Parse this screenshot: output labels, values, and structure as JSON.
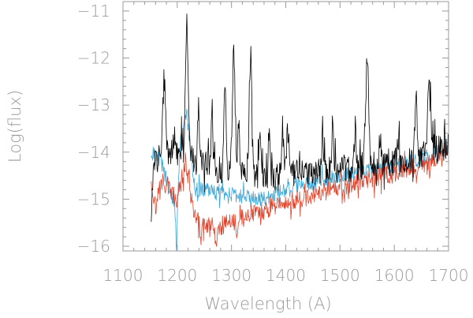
{
  "chart_data": {
    "type": "line",
    "title": "",
    "xlabel": "Wavelength (A)",
    "ylabel": "Log(flux)",
    "xlim": [
      1100,
      1700
    ],
    "ylim": [
      -16.1,
      -10.8
    ],
    "grid": false,
    "legend": "none",
    "x_ticks": [
      1100,
      1200,
      1300,
      1400,
      1500,
      1600,
      1700
    ],
    "y_ticks": [
      -16,
      -15,
      -14,
      -13,
      -12,
      -11
    ],
    "x_tick_labels": [
      "1100",
      "1200",
      "1300",
      "1400",
      "1500",
      "1600",
      "1700"
    ],
    "y_tick_labels": [
      "−16",
      "−15",
      "−14",
      "−13",
      "−12",
      "−11"
    ],
    "series": [
      {
        "color": "#000000",
        "base": [
          [
            1152,
            -14.3
          ],
          [
            1170,
            -14.05
          ],
          [
            1200,
            -14.0
          ],
          [
            1215,
            -13.7
          ],
          [
            1230,
            -14.2
          ],
          [
            1300,
            -14.45
          ],
          [
            1360,
            -14.55
          ],
          [
            1400,
            -14.5
          ],
          [
            1450,
            -14.4
          ],
          [
            1500,
            -14.35
          ],
          [
            1550,
            -14.3
          ],
          [
            1600,
            -14.2
          ],
          [
            1650,
            -14.1
          ],
          [
            1700,
            -13.85
          ]
        ],
        "lines": [
          [
            1152,
            -15.7,
            1.5
          ],
          [
            1176,
            -12.4,
            2.5
          ],
          [
            1196,
            -13.6,
            2
          ],
          [
            1218,
            -11.4,
            2.5
          ],
          [
            1239,
            -13.0,
            1.5
          ],
          [
            1264,
            -13.1,
            1.5
          ],
          [
            1288,
            -12.7,
            2
          ],
          [
            1304,
            -11.9,
            2.5
          ],
          [
            1313,
            -13.2,
            1.5
          ],
          [
            1335,
            -11.9,
            2.5
          ],
          [
            1352,
            -13.4,
            1.5
          ],
          [
            1370,
            -13.5,
            1.5
          ],
          [
            1394,
            -13.5,
            2
          ],
          [
            1403,
            -13.6,
            2
          ],
          [
            1468,
            -13.5,
            1.5
          ],
          [
            1486,
            -13.4,
            1.5
          ],
          [
            1528,
            -13.5,
            1.5
          ],
          [
            1550,
            -12.2,
            3
          ],
          [
            1574,
            -13.6,
            1.5
          ],
          [
            1608,
            -13.4,
            1.5
          ],
          [
            1640,
            -12.9,
            2
          ],
          [
            1664,
            -12.6,
            3
          ],
          [
            1672,
            -13.6,
            2
          ]
        ],
        "noise": 0.3
      },
      {
        "color": "#3aa6d6",
        "base": [
          [
            1152,
            -14.0
          ],
          [
            1170,
            -14.2
          ],
          [
            1198,
            -15.2
          ],
          [
            1206,
            -13.8
          ],
          [
            1218,
            -13.2
          ],
          [
            1232,
            -14.8
          ],
          [
            1260,
            -14.8
          ],
          [
            1300,
            -14.9
          ],
          [
            1360,
            -15.0
          ],
          [
            1400,
            -14.8
          ],
          [
            1450,
            -14.65
          ],
          [
            1500,
            -14.5
          ],
          [
            1550,
            -14.4
          ],
          [
            1600,
            -14.3
          ],
          [
            1650,
            -14.15
          ],
          [
            1700,
            -13.9
          ]
        ],
        "lines": [
          [
            1199,
            -16.0,
            1.5
          ],
          [
            1218,
            -13.2,
            3
          ]
        ],
        "noise": 0.16
      },
      {
        "color": "#e0432b",
        "base": [
          [
            1152,
            -14.6
          ],
          [
            1160,
            -15.2
          ],
          [
            1170,
            -14.6
          ],
          [
            1200,
            -15.0
          ],
          [
            1215,
            -14.2
          ],
          [
            1232,
            -15.4
          ],
          [
            1270,
            -15.6
          ],
          [
            1300,
            -15.5
          ],
          [
            1340,
            -15.3
          ],
          [
            1400,
            -15.1
          ],
          [
            1450,
            -14.9
          ],
          [
            1500,
            -14.75
          ],
          [
            1550,
            -14.6
          ],
          [
            1600,
            -14.45
          ],
          [
            1650,
            -14.3
          ],
          [
            1700,
            -14.0
          ]
        ],
        "lines": [
          [
            1272,
            -16.1,
            1.5
          ],
          [
            1243,
            -16.0,
            1.5
          ],
          [
            1310,
            -15.9,
            1.5
          ]
        ],
        "noise": 0.2
      }
    ]
  }
}
